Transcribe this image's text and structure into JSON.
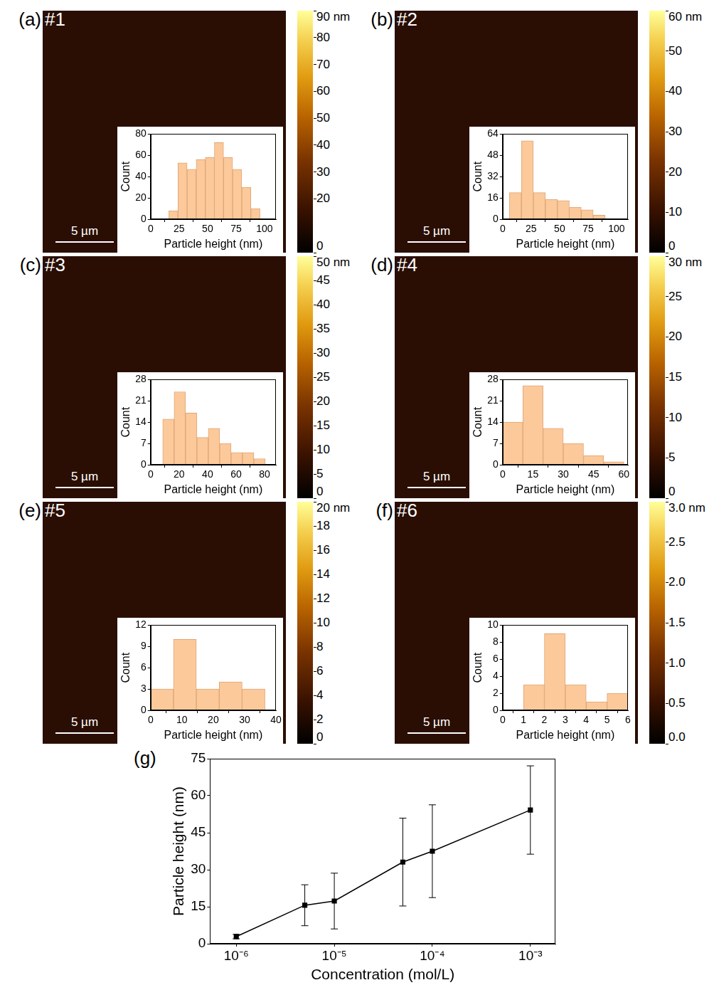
{
  "chart_data": [
    {
      "type": "histogram",
      "panel": "(a)",
      "sample": "#1",
      "scale_bar": "5 µm",
      "bins": [
        16,
        24,
        32,
        40,
        48,
        56,
        64,
        72,
        80,
        88,
        96
      ],
      "values": [
        8,
        53,
        47,
        56,
        58,
        72,
        58,
        47,
        30,
        10
      ],
      "color": "#fcc99b",
      "x_label": "Particle height (nm)",
      "y_label": "Count",
      "xlim": [
        0,
        110
      ],
      "xticks": [
        0,
        25,
        50,
        75,
        100
      ],
      "ylim": [
        0,
        80
      ],
      "yticks": [
        0,
        20,
        40,
        60,
        80
      ],
      "grid": false,
      "colorbar": {
        "range": [
          0,
          90
        ],
        "ticks": [
          0,
          20,
          30,
          40,
          50,
          60,
          70,
          80,
          {
            "value": 90,
            "label": "90 nm"
          }
        ]
      }
    },
    {
      "type": "histogram",
      "panel": "(b)",
      "sample": "#2",
      "scale_bar": "5 µm",
      "bins": [
        6,
        16.5,
        27,
        37.5,
        48,
        58.5,
        69,
        79.5,
        90
      ],
      "values": [
        20,
        59,
        20,
        15,
        14,
        9,
        7,
        3
      ],
      "color": "#fcc99b",
      "x_label": "Particle height (nm)",
      "y_label": "Count",
      "xlim": [
        0,
        110
      ],
      "xticks": [
        0,
        25,
        50,
        75,
        100
      ],
      "ylim": [
        0,
        64
      ],
      "yticks": [
        0,
        16,
        32,
        48,
        64
      ],
      "grid": false,
      "colorbar": {
        "range": [
          0,
          60
        ],
        "ticks": [
          0,
          10,
          20,
          30,
          40,
          50,
          {
            "value": 60,
            "label": "60 nm"
          }
        ]
      }
    },
    {
      "type": "histogram",
      "panel": "(c)",
      "sample": "#3",
      "scale_bar": "5 µm",
      "bins": [
        8.5,
        16.5,
        24.5,
        32.5,
        40.5,
        48.5,
        56.5,
        64.5,
        72.5,
        80.5
      ],
      "values": [
        15,
        24,
        17,
        9,
        12,
        7,
        4,
        4,
        2
      ],
      "color": "#fcc99b",
      "x_label": "Particle height (nm)",
      "y_label": "Count",
      "xlim": [
        0,
        88
      ],
      "xticks": [
        0,
        20,
        40,
        60,
        80
      ],
      "ylim": [
        0,
        28
      ],
      "yticks": [
        0,
        7,
        14,
        21,
        28
      ],
      "grid": false,
      "colorbar": {
        "range": [
          0,
          50
        ],
        "ticks": [
          0,
          5,
          10,
          15,
          20,
          25,
          30,
          35,
          40,
          45,
          {
            "value": 50,
            "label": "50 nm"
          }
        ]
      }
    },
    {
      "type": "histogram",
      "panel": "(d)",
      "sample": "#4",
      "scale_bar": "5 µm",
      "bins": [
        0,
        10,
        20,
        30,
        40,
        50,
        60
      ],
      "values": [
        14,
        26,
        12,
        7,
        3,
        1
      ],
      "color": "#fcc99b",
      "x_label": "Particle height (nm)",
      "y_label": "Count",
      "xlim": [
        0,
        62
      ],
      "xticks": [
        0,
        15,
        30,
        45,
        60
      ],
      "ylim": [
        0,
        28
      ],
      "yticks": [
        0,
        7,
        14,
        21,
        28
      ],
      "grid": false,
      "colorbar": {
        "range": [
          0,
          30
        ],
        "ticks": [
          0,
          5,
          10,
          15,
          20,
          25,
          {
            "value": 30,
            "label": "30 nm"
          }
        ]
      }
    },
    {
      "type": "histogram",
      "panel": "(e)",
      "sample": "#5",
      "scale_bar": "5 µm",
      "bins": [
        0,
        7.3,
        14.6,
        21.9,
        29.2,
        36.5
      ],
      "values": [
        3,
        10,
        3,
        4,
        3
      ],
      "color": "#fcc99b",
      "x_label": "Particle height (nm)",
      "y_label": "Count",
      "xlim": [
        0,
        40
      ],
      "xticks": [
        0,
        10,
        20,
        30,
        40
      ],
      "ylim": [
        0,
        12
      ],
      "yticks": [
        0,
        3,
        6,
        9,
        12
      ],
      "grid": false,
      "colorbar": {
        "range": [
          0,
          20
        ],
        "ticks": [
          0,
          2,
          4,
          6,
          8,
          10,
          12,
          14,
          16,
          18,
          {
            "value": 20,
            "label": "20 nm"
          }
        ]
      }
    },
    {
      "type": "histogram",
      "panel": "(f)",
      "sample": "#6",
      "scale_bar": "5 µm",
      "bins": [
        1,
        2,
        3,
        4,
        5,
        6
      ],
      "values": [
        3,
        9,
        3,
        1,
        2
      ],
      "color": "#fcc99b",
      "x_label": "Particle height (nm)",
      "y_label": "Count",
      "xlim": [
        0,
        6
      ],
      "xticks": [
        0,
        1,
        2,
        3,
        4,
        5,
        6
      ],
      "ylim": [
        0,
        10
      ],
      "yticks": [
        0,
        2,
        4,
        6,
        8,
        10
      ],
      "grid": false,
      "colorbar": {
        "range": [
          0,
          3
        ],
        "ticks": [
          {
            "value": 0,
            "label": "0.0"
          },
          0.5,
          {
            "value": 1,
            "label": "1.0"
          },
          1.5,
          {
            "value": 2,
            "label": "2.0"
          },
          2.5,
          {
            "value": 3,
            "label": "3.0 nm"
          }
        ]
      }
    },
    {
      "type": "line",
      "panel": "(g)",
      "x": [
        1e-06,
        5e-06,
        1e-05,
        5e-05,
        0.0001,
        0.001
      ],
      "values": [
        2.9,
        15.6,
        17.3,
        33.1,
        37.5,
        54.2
      ],
      "errors": [
        0.9,
        8.3,
        11.3,
        17.8,
        18.8,
        17.9
      ],
      "x_label": "Concentration (mol/L)",
      "y_label": "Particle height (nm)",
      "log": "x",
      "xlim": [
        5.4e-07,
        0.0018
      ],
      "xticks": [
        {
          "value": 1e-06,
          "label": "10⁻⁶"
        },
        {
          "value": 1e-05,
          "label": "10⁻⁵"
        },
        {
          "value": 0.0001,
          "label": "10⁻⁴"
        },
        {
          "value": 0.001,
          "label": "10⁻³"
        }
      ],
      "ylim": [
        0,
        75
      ],
      "yticks": [
        0,
        15,
        30,
        45,
        60,
        75
      ],
      "color": "#000000",
      "marker": "square",
      "grid": false
    }
  ]
}
